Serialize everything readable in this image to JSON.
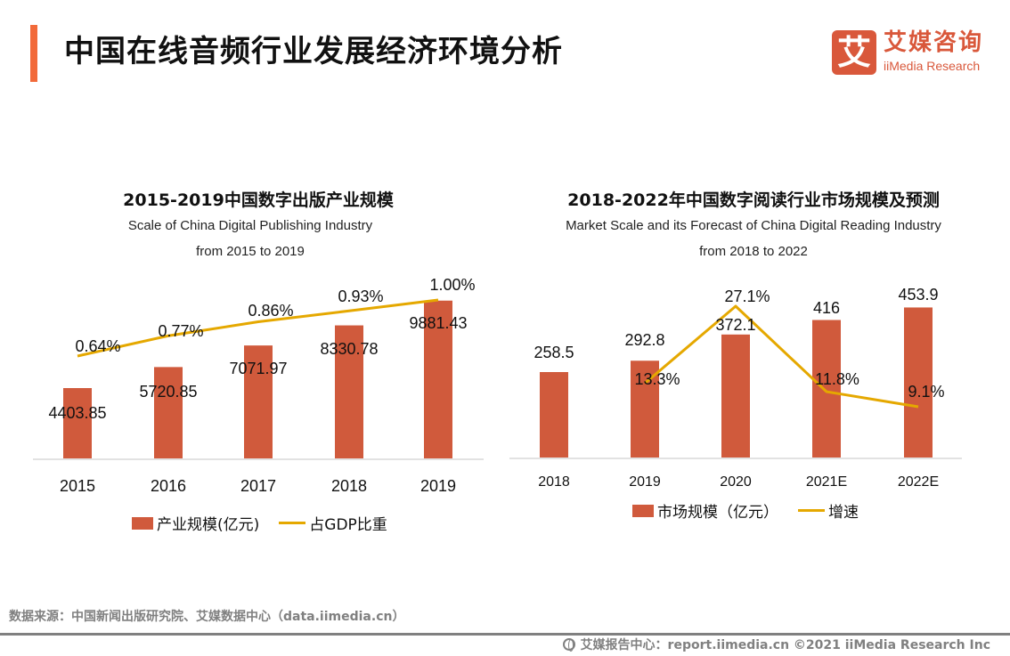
{
  "header": {
    "title": "中国在线音频行业发展经济环境分析",
    "accent_color": "#f26a3a"
  },
  "logo": {
    "glyph": "艾",
    "name_cn": "艾媒咨询",
    "name_en": "iiMedia Research",
    "brand_color": "#d9583b"
  },
  "chart_data": [
    {
      "type": "bar",
      "title": "2015-2019中国数字出版产业规模",
      "subtitle_line1": "Scale of China Digital Publishing Industry",
      "subtitle_line2": "from 2015 to 2019",
      "categories": [
        "2015",
        "2016",
        "2017",
        "2018",
        "2019"
      ],
      "series": [
        {
          "name": "产业规模(亿元)",
          "type": "bar",
          "color": "#d05a3c",
          "values": [
            4403.85,
            5720.85,
            7071.97,
            8330.78,
            9881.43
          ],
          "labels": [
            "4403.85",
            "5720.85",
            "7071.97",
            "8330.78",
            "9881.43"
          ]
        },
        {
          "name": "占GDP比重",
          "type": "line",
          "color": "#e5a800",
          "values": [
            0.64,
            0.77,
            0.86,
            0.93,
            1.0
          ],
          "labels": [
            "0.64%",
            "0.77%",
            "0.86%",
            "0.93%",
            "1.00%"
          ]
        }
      ],
      "xlabel": "",
      "ylabel": "",
      "grid": false,
      "legend": "bottom"
    },
    {
      "type": "bar",
      "title": "2018-2022年中国数字阅读行业市场规模及预测",
      "subtitle_line1": "Market Scale and its Forecast of China Digital Reading Industry",
      "subtitle_line2": "from 2018 to 2022",
      "categories": [
        "2018",
        "2019",
        "2020",
        "2021E",
        "2022E"
      ],
      "series": [
        {
          "name": "市场规模（亿元）",
          "type": "bar",
          "color": "#d05a3c",
          "values": [
            258.5,
            292.8,
            372.1,
            416,
            453.9
          ],
          "labels": [
            "258.5",
            "292.8",
            "372.1",
            "416",
            "453.9"
          ]
        },
        {
          "name": "增速",
          "type": "line",
          "color": "#e5a800",
          "values": [
            null,
            13.3,
            27.1,
            11.8,
            9.1
          ],
          "labels": [
            "",
            "13.3%",
            "27.1%",
            "11.8%",
            "9.1%"
          ]
        }
      ],
      "xlabel": "",
      "ylabel": "",
      "grid": false,
      "legend": "bottom"
    }
  ],
  "footer": {
    "source": "数据来源：中国新闻出版研究院、艾媒数据中心（data.iimedia.cn）",
    "copyright": "艾媒报告中心：report.iimedia.cn ©2021  iiMedia Research  Inc",
    "icon": "globe-cursor-icon"
  }
}
